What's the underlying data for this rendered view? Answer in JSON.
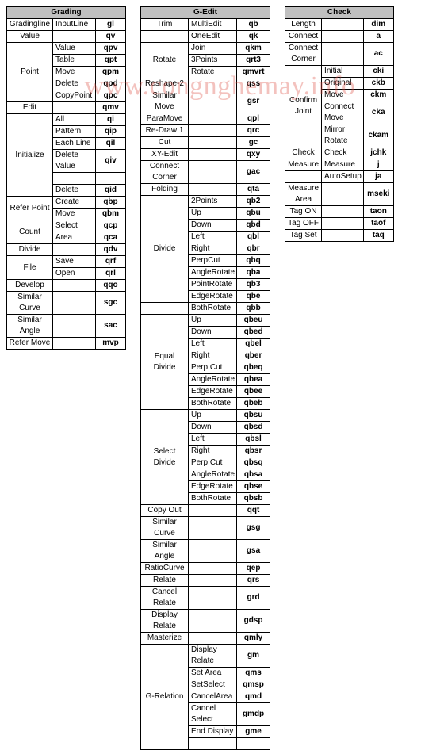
{
  "watermark": "www.congnghemay.info",
  "col_widths": {
    "t1": [
      58,
      54,
      38
    ],
    "t2": [
      60,
      60,
      42
    ],
    "t3": [
      46,
      50,
      38
    ]
  },
  "tables": [
    {
      "id": "t1",
      "title": "Grading",
      "rows": [
        [
          "Gradingline",
          "InputLine",
          "gl"
        ],
        [
          "Value",
          "",
          "qv"
        ],
        [
          {
            "t": "Point",
            "rs": 5
          },
          "Value",
          "qpv"
        ],
        [
          "Table",
          "qpt"
        ],
        [
          "Move",
          "qpm"
        ],
        [
          "Delete",
          "qpd"
        ],
        [
          "CopyPoint",
          "qpc"
        ],
        [
          "Edit",
          "",
          "qmv"
        ],
        [
          {
            "t": "Initialize",
            "rs": 6
          },
          "All",
          "qi"
        ],
        [
          "Pattern",
          "qip"
        ],
        [
          "Each Line",
          "qil"
        ],
        [
          "Delete Value",
          "qiv"
        ],
        [
          " ",
          " "
        ],
        [
          "Delete",
          "qid"
        ],
        [
          {
            "t": "Refer Point",
            "rs": 2
          },
          "Create",
          "qbp"
        ],
        [
          "Move",
          "qbm"
        ],
        [
          {
            "t": "Count",
            "rs": 2
          },
          "Select",
          "qcp"
        ],
        [
          "Area",
          "qca"
        ],
        [
          "Divide",
          "",
          "qdv"
        ],
        [
          {
            "t": "File",
            "rs": 2
          },
          "Save",
          "qrf"
        ],
        [
          "Open",
          "qrl"
        ],
        [
          "Develop",
          "",
          "qqo"
        ],
        [
          "Similar Curve",
          "",
          "sgc"
        ],
        [
          "Similar Angle",
          "",
          "sac"
        ],
        [
          "Refer Move",
          "",
          "mvp"
        ]
      ]
    },
    {
      "id": "t2",
      "title": "G-Edit",
      "rows": [
        [
          {
            "t": "Trim",
            "rs": 1
          },
          "MultiEdit",
          "qb"
        ],
        [
          "",
          "OneEdit",
          "qk"
        ],
        [
          {
            "t": "Rotate",
            "rs": 3
          },
          "Join",
          "qkm"
        ],
        [
          "3Points",
          "qrt3"
        ],
        [
          "Rotate",
          "qmvrt"
        ],
        [
          "Reshape-2",
          "",
          "qss"
        ],
        [
          "Similar Move",
          "",
          "gsr"
        ],
        [
          "ParaMove",
          "",
          "qpl"
        ],
        [
          "Re-Draw 1",
          "",
          "qrc"
        ],
        [
          "Cut",
          "",
          "gc"
        ],
        [
          "XY-Edit",
          "",
          "qxy"
        ],
        [
          "Connect Corner",
          "",
          "gac"
        ],
        [
          "Folding",
          "",
          "qta"
        ],
        [
          {
            "t": "Divide",
            "rs": 9
          },
          "2Points",
          "qb2"
        ],
        [
          "Up",
          "qbu"
        ],
        [
          "Down",
          "qbd"
        ],
        [
          "Left",
          "qbl"
        ],
        [
          "Right",
          "qbr"
        ],
        [
          "PerpCut",
          "qbq"
        ],
        [
          "AngleRotate",
          "qba"
        ],
        [
          "PointRotate",
          "qb3"
        ],
        [
          "EdgeRotate",
          "qbe"
        ],
        [
          "",
          "BothRotate",
          "qbb"
        ],
        [
          {
            "t": "Equal Divide",
            "rs": 8
          },
          "Up",
          "qbeu"
        ],
        [
          "Down",
          "qbed"
        ],
        [
          "Left",
          "qbel"
        ],
        [
          "Right",
          "qber"
        ],
        [
          "Perp Cut",
          "qbeq"
        ],
        [
          "AngleRotate",
          "qbea"
        ],
        [
          "EdgeRotate",
          "qbee"
        ],
        [
          "BothRotate",
          "qbeb"
        ],
        [
          {
            "t": "Select Divide",
            "rs": 8
          },
          "Up",
          "qbsu"
        ],
        [
          "Down",
          "qbsd"
        ],
        [
          "Left",
          "qbsl"
        ],
        [
          "Right",
          "qbsr"
        ],
        [
          "Perp Cut",
          "qbsq"
        ],
        [
          "AngleRotate",
          "qbsa"
        ],
        [
          "EdgeRotate",
          "qbse"
        ],
        [
          "BothRotate",
          "qbsb"
        ],
        [
          "Copy Out",
          "",
          "qqt"
        ],
        [
          "Similar Curve",
          "",
          "gsg"
        ],
        [
          "Similar Angle",
          "",
          "gsa"
        ],
        [
          "RatioCurve",
          "",
          "qep"
        ],
        [
          "Relate",
          "",
          "qrs"
        ],
        [
          "Cancel Relate",
          "",
          "grd"
        ],
        [
          "Display Relate",
          "",
          "gdsp"
        ],
        [
          "Masterize",
          "",
          "qmly"
        ],
        [
          {
            "t": "G-Relation",
            "rs": 7
          },
          "Display Relate",
          "gm"
        ],
        [
          "Set Area",
          "qms"
        ],
        [
          "SetSelect",
          "qmsp"
        ],
        [
          "CancelArea",
          "qmd"
        ],
        [
          "Cancel Select",
          "gmdp"
        ],
        [
          "End Display",
          "gme"
        ],
        [
          " ",
          " "
        ]
      ]
    },
    {
      "id": "t3",
      "title": "Check",
      "rows": [
        [
          "Length",
          "",
          "dim"
        ],
        [
          "Connect",
          "",
          "a"
        ],
        [
          "Connect Corner",
          "",
          "ac"
        ],
        [
          {
            "t": "Confirm Joint",
            "rs": 5
          },
          "Initial",
          "cki"
        ],
        [
          "Original",
          "ckb"
        ],
        [
          "Move",
          "ckm"
        ],
        [
          "Connect Move",
          "cka"
        ],
        [
          "Mirror Rotate",
          "ckam"
        ],
        [
          {
            "t": "Check",
            "rs": 1
          },
          "Check",
          "jchk"
        ],
        [
          "Measure",
          "Measure",
          "j"
        ],
        [
          "",
          "AutoSetup",
          "ja"
        ],
        [
          "Measure Area",
          "",
          "mseki"
        ],
        [
          "Tag ON",
          "",
          "taon"
        ],
        [
          "Tag OFF",
          "",
          "taof"
        ],
        [
          "Tag Set",
          "",
          "taq"
        ]
      ]
    }
  ]
}
